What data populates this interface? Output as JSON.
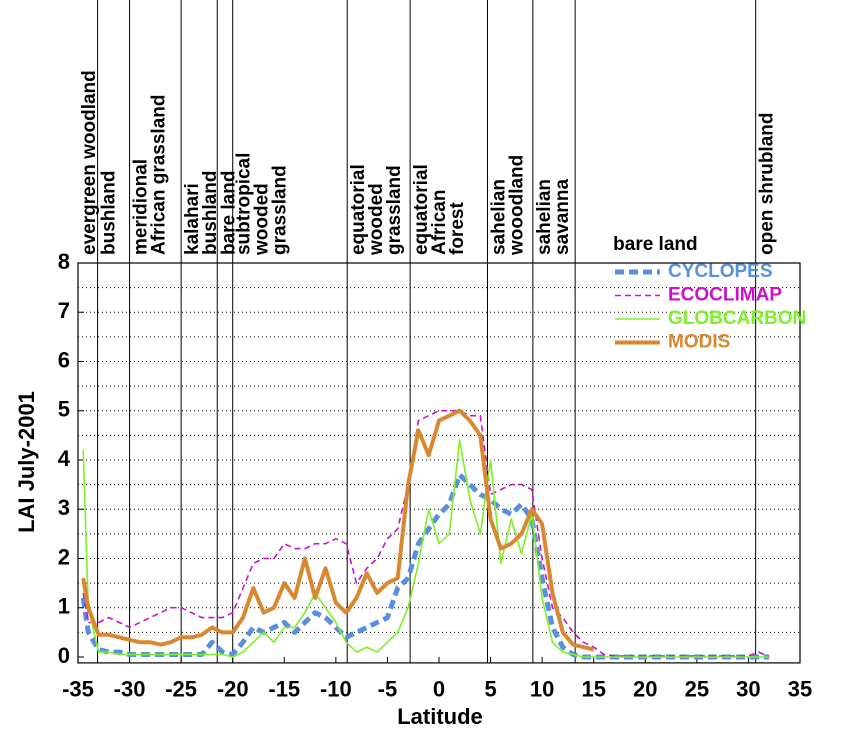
{
  "chart_data": {
    "type": "line",
    "xlabel": "Latitude",
    "ylabel": "LAI July-2001",
    "xlim": [
      -35,
      35
    ],
    "ylim": [
      -0.12,
      8
    ],
    "xticks": [
      -35,
      -30,
      -25,
      -20,
      -15,
      -10,
      -5,
      0,
      5,
      10,
      15,
      20,
      25,
      30,
      35
    ],
    "yticks": [
      0,
      1,
      2,
      3,
      4,
      5,
      6,
      7,
      8
    ],
    "ygrid": [
      0.5,
      1,
      1.5,
      2,
      2.5,
      3,
      3.5,
      4,
      4.5,
      5,
      5.5,
      6,
      6.5,
      7,
      7.5,
      8
    ],
    "legend": "upper right",
    "boundaries": [
      -33.1,
      -30,
      -25,
      -21.5,
      -20,
      -8.9,
      -2.8,
      4.7,
      9.1,
      13.2,
      30.7
    ],
    "regions": [
      {
        "lines": [
          "evergreen woodland"
        ]
      },
      {
        "lines": [
          "bushland"
        ]
      },
      {
        "lines": [
          "meridional",
          "African grassland"
        ]
      },
      {
        "lines": [
          "kalahari",
          "bushland"
        ]
      },
      {
        "lines": [
          "bare land"
        ]
      },
      {
        "lines": [
          "subtropical",
          "wooded",
          "grassland"
        ]
      },
      {
        "lines": [
          "equatorial",
          "wooded",
          "grassland"
        ]
      },
      {
        "lines": [
          "equatorial",
          "African",
          "forest"
        ]
      },
      {
        "lines": [
          "sahelian",
          "wooodland"
        ]
      },
      {
        "lines": [
          "sahelian",
          "savanna"
        ]
      },
      {
        "lines": [
          "bare land"
        ],
        "horizontal": true
      },
      {
        "lines": [
          "open shrubland"
        ]
      }
    ],
    "x": [
      -34.5,
      -34,
      -33,
      -32,
      -31,
      -30,
      -29,
      -28,
      -27,
      -26,
      -25,
      -24,
      -23,
      -22,
      -21,
      -20,
      -19,
      -18,
      -17,
      -16,
      -15,
      -14,
      -13,
      -12,
      -11,
      -10,
      -9,
      -8,
      -7,
      -6,
      -5,
      -4,
      -3,
      -2,
      -1,
      0,
      1,
      2,
      3,
      4,
      5,
      6,
      7,
      8,
      9,
      10,
      11,
      12,
      13,
      14,
      15,
      16,
      17,
      18,
      19,
      20,
      21,
      22,
      23,
      24,
      25,
      26,
      27,
      28,
      29,
      30,
      31,
      32
    ],
    "series": [
      {
        "name": "CYCLOPES",
        "color": "#5a8fde",
        "style": "dashed",
        "linewidth": 5,
        "values": [
          1.2,
          0.5,
          0.15,
          0.1,
          0.1,
          0.05,
          0.05,
          0.05,
          0.05,
          0.05,
          0.05,
          0.05,
          0.05,
          0.3,
          0.1,
          0.05,
          0.3,
          0.6,
          0.5,
          0.6,
          0.7,
          0.5,
          0.7,
          0.9,
          0.8,
          0.6,
          0.4,
          0.5,
          0.6,
          0.7,
          0.8,
          1.4,
          1.6,
          2.3,
          2.6,
          2.9,
          3.1,
          3.7,
          3.5,
          3.3,
          3.2,
          3.0,
          2.9,
          3.1,
          2.8,
          1.6,
          0.6,
          0.2,
          0.05,
          0,
          0,
          0,
          0,
          0,
          0,
          0,
          0,
          0,
          0,
          0,
          0,
          0,
          0,
          0,
          0,
          0,
          0,
          0
        ]
      },
      {
        "name": "ECOCLIMAP",
        "color": "#cc11cc",
        "style": "dashed",
        "linewidth": 1.6,
        "values": [
          1.3,
          0.7,
          0.7,
          0.8,
          0.7,
          0.6,
          0.7,
          0.8,
          0.9,
          1.0,
          1.0,
          0.9,
          0.8,
          0.8,
          0.8,
          0.9,
          1.4,
          1.9,
          2.0,
          2.0,
          2.3,
          2.2,
          2.2,
          2.3,
          2.3,
          2.4,
          2.3,
          1.5,
          1.8,
          2.0,
          2.4,
          2.6,
          3.5,
          4.8,
          4.9,
          5.0,
          5.0,
          5.0,
          4.9,
          4.9,
          3.3,
          3.4,
          3.5,
          3.5,
          3.4,
          2.0,
          1.0,
          0.8,
          0.5,
          0.3,
          0.2,
          0.05,
          0.02,
          0.02,
          0.02,
          0.02,
          0.02,
          0.02,
          0.02,
          0.02,
          0.02,
          0.02,
          0.02,
          0.02,
          0.02,
          0.02,
          0.1,
          0
        ]
      },
      {
        "name": "GLOBCARBON",
        "color": "#7ef02a",
        "style": "solid",
        "linewidth": 1.6,
        "values": [
          4.2,
          1.0,
          0.1,
          0.1,
          0.05,
          0.05,
          0.05,
          0.05,
          0.05,
          0.05,
          0.05,
          0.05,
          0.05,
          0.05,
          0.05,
          0,
          0.1,
          0.3,
          0.5,
          0.3,
          0.6,
          0.6,
          0.9,
          1.3,
          1.0,
          0.7,
          0.3,
          0.1,
          0.2,
          0.1,
          0.3,
          0.5,
          1.0,
          1.9,
          3.0,
          2.3,
          2.5,
          4.4,
          3.2,
          2.5,
          4.0,
          1.9,
          2.8,
          2.1,
          2.9,
          1.2,
          0.3,
          0.1,
          0.05,
          0,
          0,
          0,
          0,
          0,
          0,
          0,
          0,
          0,
          0,
          0,
          0,
          0,
          0,
          0,
          0,
          0,
          0,
          0
        ]
      },
      {
        "name": "MODIS",
        "color": "#d9882f",
        "style": "solid",
        "linewidth": 4,
        "values": [
          1.6,
          1.0,
          0.45,
          0.45,
          0.4,
          0.35,
          0.3,
          0.3,
          0.25,
          0.3,
          0.4,
          0.4,
          0.45,
          0.6,
          0.5,
          0.5,
          0.8,
          1.4,
          0.9,
          1.0,
          1.5,
          1.2,
          2.0,
          1.2,
          1.8,
          1.1,
          0.9,
          1.2,
          1.7,
          1.3,
          1.5,
          1.6,
          3.5,
          4.6,
          4.1,
          4.8,
          4.9,
          5.0,
          4.8,
          4.5,
          2.8,
          2.2,
          2.3,
          2.5,
          3.0,
          2.7,
          1.3,
          0.5,
          0.25,
          0.2,
          0.15,
          null,
          null,
          null,
          null,
          null,
          null,
          null,
          null,
          null,
          null,
          null,
          null,
          null,
          null,
          null,
          null,
          null
        ]
      }
    ]
  }
}
